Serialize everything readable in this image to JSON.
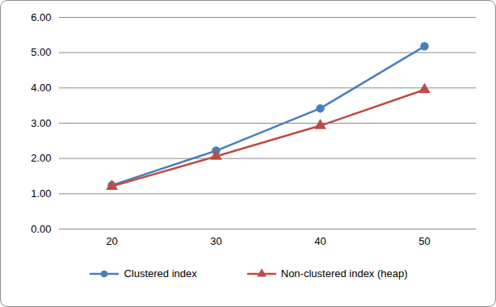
{
  "chart_data": {
    "type": "line",
    "categories": [
      "20",
      "30",
      "40",
      "50"
    ],
    "series": [
      {
        "name": "Clustered index",
        "color": "#4a7ebb",
        "marker": "circle",
        "line_style": "solid",
        "values": [
          1.24,
          2.22,
          3.42,
          5.18
        ]
      },
      {
        "name": "Non-clustered index (heap)",
        "color": "#be4b48",
        "marker": "triangle",
        "line_style": "solid",
        "values": [
          1.21,
          2.06,
          2.93,
          3.95
        ]
      }
    ],
    "ylim": [
      0,
      6
    ],
    "yticks": [
      {
        "value": 0,
        "label": "0.00"
      },
      {
        "value": 1,
        "label": "1.00"
      },
      {
        "value": 2,
        "label": "2.00"
      },
      {
        "value": 3,
        "label": "3.00"
      },
      {
        "value": 4,
        "label": "4.00"
      },
      {
        "value": 5,
        "label": "5.00"
      },
      {
        "value": 6,
        "label": "6.00"
      }
    ],
    "grid": true,
    "legend": "bottom"
  }
}
